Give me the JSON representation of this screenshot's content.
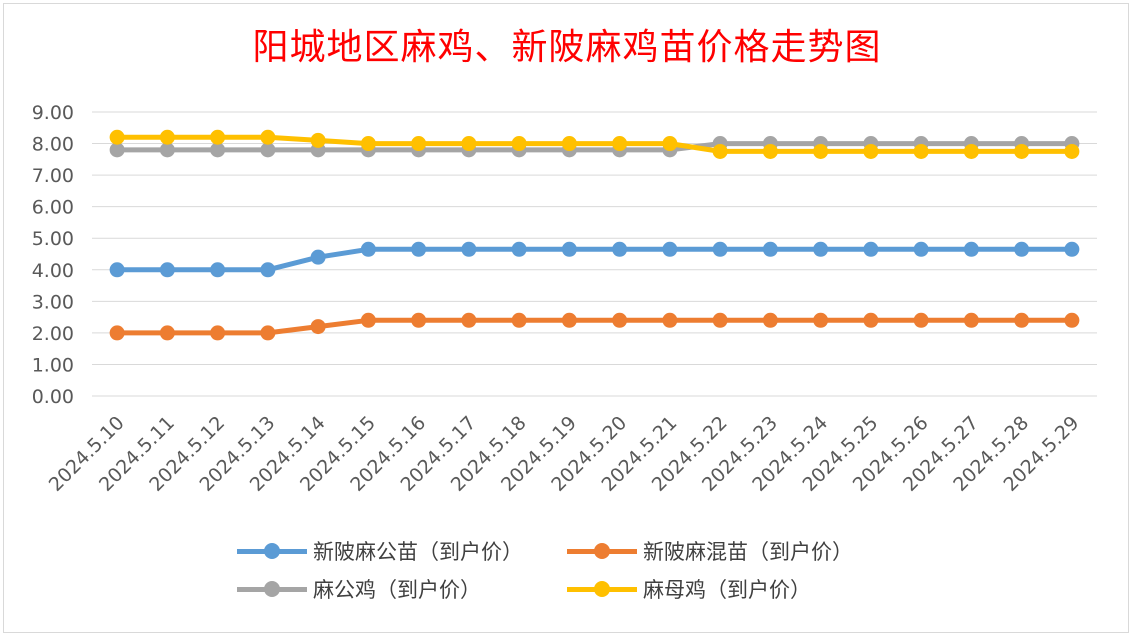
{
  "chart_data": {
    "type": "line",
    "title": "阳城地区麻鸡、新陂麻鸡苗价格走势图",
    "xlabel": "",
    "ylabel": "",
    "ylim": [
      0,
      9
    ],
    "yticks": [
      "0.00",
      "1.00",
      "2.00",
      "3.00",
      "4.00",
      "5.00",
      "6.00",
      "7.00",
      "8.00",
      "9.00"
    ],
    "grid": true,
    "legend": "bottom",
    "categories": [
      "2024.5.10",
      "2024.5.11",
      "2024.5.12",
      "2024.5.13",
      "2024.5.14",
      "2024.5.15",
      "2024.5.16",
      "2024.5.17",
      "2024.5.18",
      "2024.5.19",
      "2024.5.20",
      "2024.5.21",
      "2024.5.22",
      "2024.5.23",
      "2024.5.24",
      "2024.5.25",
      "2024.5.26",
      "2024.5.27",
      "2024.5.28",
      "2024.5.29"
    ],
    "series": [
      {
        "name": "新陂麻公苗（到户价）",
        "color": "#5b9bd5",
        "values": [
          4.0,
          4.0,
          4.0,
          4.0,
          4.4,
          4.65,
          4.65,
          4.65,
          4.65,
          4.65,
          4.65,
          4.65,
          4.65,
          4.65,
          4.65,
          4.65,
          4.65,
          4.65,
          4.65,
          4.65
        ]
      },
      {
        "name": "新陂麻混苗（到户价）",
        "color": "#ed7d31",
        "values": [
          2.0,
          2.0,
          2.0,
          2.0,
          2.2,
          2.4,
          2.4,
          2.4,
          2.4,
          2.4,
          2.4,
          2.4,
          2.4,
          2.4,
          2.4,
          2.4,
          2.4,
          2.4,
          2.4,
          2.4
        ]
      },
      {
        "name": "麻公鸡（到户价）",
        "color": "#a5a5a5",
        "values": [
          7.8,
          7.8,
          7.8,
          7.8,
          7.8,
          7.8,
          7.8,
          7.8,
          7.8,
          7.8,
          7.8,
          7.8,
          8.0,
          8.0,
          8.0,
          8.0,
          8.0,
          8.0,
          8.0,
          8.0
        ]
      },
      {
        "name": "麻母鸡（到户价）",
        "color": "#ffc000",
        "values": [
          8.2,
          8.2,
          8.2,
          8.2,
          8.1,
          8.0,
          8.0,
          8.0,
          8.0,
          8.0,
          8.0,
          8.0,
          7.75,
          7.75,
          7.75,
          7.75,
          7.75,
          7.75,
          7.75,
          7.75
        ]
      }
    ]
  }
}
